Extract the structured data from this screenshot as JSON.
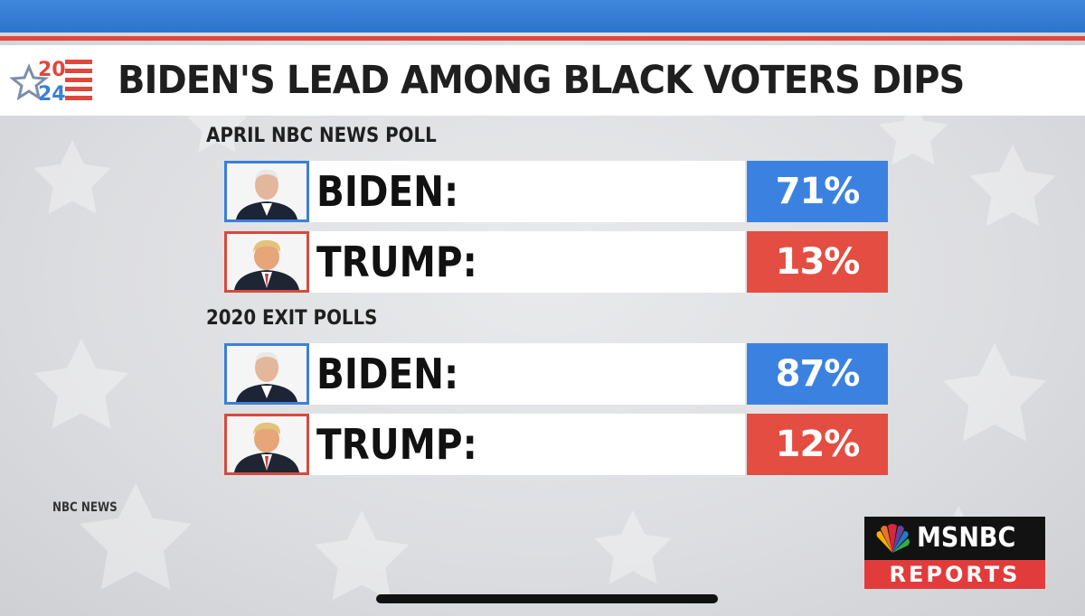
{
  "title": "BIDEN'S LEAD AMONG BLACK VOTERS DIPS",
  "logo": {
    "top": "20",
    "bottom": "24"
  },
  "sections": [
    {
      "label": "APRIL NBC NEWS POLL",
      "rows": [
        {
          "name": "BIDEN:",
          "percent": "71%",
          "value": 71,
          "party": "dem",
          "photo_icon": "biden-portrait"
        },
        {
          "name": "TRUMP:",
          "percent": "13%",
          "value": 13,
          "party": "rep",
          "photo_icon": "trump-portrait"
        }
      ]
    },
    {
      "label": "2020 EXIT POLLS",
      "rows": [
        {
          "name": "BIDEN:",
          "percent": "87%",
          "value": 87,
          "party": "dem",
          "photo_icon": "biden-portrait"
        },
        {
          "name": "TRUMP:",
          "percent": "12%",
          "value": 12,
          "party": "rep",
          "photo_icon": "trump-portrait"
        }
      ]
    }
  ],
  "source": "NBC NEWS",
  "network": {
    "brand": "MSNBC",
    "program": "REPORTS"
  },
  "colors": {
    "dem_blue": "#3b82e0",
    "rep_red": "#e44d41",
    "top_bar": "#3f86dd"
  }
}
